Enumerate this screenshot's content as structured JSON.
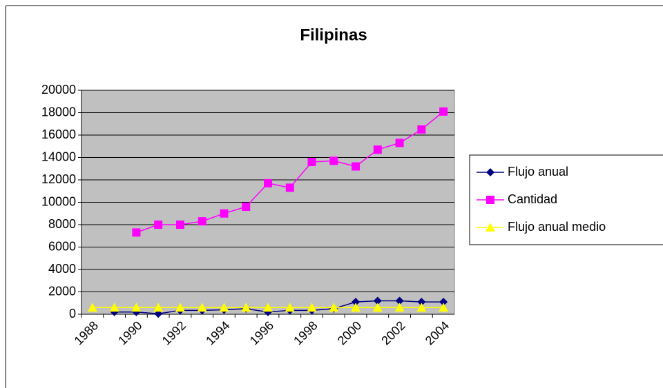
{
  "chart_data": {
    "type": "line",
    "title": "Filipinas",
    "categories": [
      "1988",
      null,
      "1990",
      null,
      "1992",
      null,
      "1994",
      null,
      "1996",
      null,
      "1998",
      null,
      "2000",
      null,
      "2002",
      null,
      "2004"
    ],
    "series": [
      {
        "name": "Flujo anual",
        "color": "#000080",
        "marker": "diamond",
        "values": [
          null,
          200,
          200,
          50,
          350,
          350,
          400,
          500,
          200,
          350,
          350,
          500,
          1100,
          1200,
          1200,
          1100,
          1100
        ]
      },
      {
        "name": "Cantidad",
        "color": "#ff00ff",
        "marker": "square",
        "values": [
          null,
          null,
          7300,
          8000,
          8000,
          8300,
          9000,
          9600,
          11700,
          11300,
          13600,
          13700,
          13200,
          14700,
          15300,
          16500,
          18100
        ]
      },
      {
        "name": "Flujo anual medio",
        "color": "#ffff00",
        "marker": "triangle",
        "values": [
          600,
          600,
          600,
          600,
          600,
          600,
          600,
          600,
          600,
          600,
          600,
          600,
          600,
          600,
          600,
          600,
          600
        ]
      }
    ],
    "ylim": [
      0,
      20000
    ],
    "yticks": [
      0,
      2000,
      4000,
      6000,
      8000,
      10000,
      12000,
      14000,
      16000,
      18000,
      20000
    ],
    "grid": true,
    "legend": "right"
  }
}
